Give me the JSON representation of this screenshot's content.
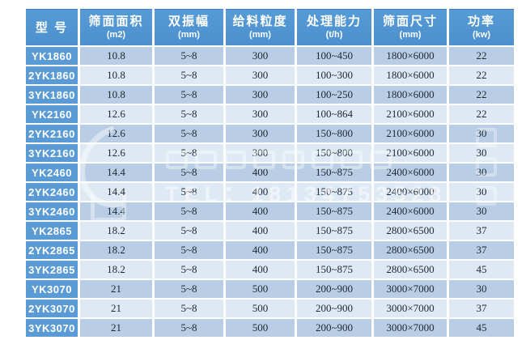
{
  "table": {
    "columns": [
      {
        "title": "型 号",
        "unit": ""
      },
      {
        "title": "筛面面积",
        "unit": "(m2)"
      },
      {
        "title": "双振幅",
        "unit": "(mm)"
      },
      {
        "title": "给料粒度",
        "unit": "(mm)"
      },
      {
        "title": "处理能力",
        "unit": "(t/h)"
      },
      {
        "title": "筛面尺寸",
        "unit": "(mm)"
      },
      {
        "title": "功率",
        "unit": "(kw)"
      }
    ],
    "rows": [
      [
        "YK1860",
        "10.8",
        "5~8",
        "300",
        "100~450",
        "1800×6000",
        "22"
      ],
      [
        "2YK1860",
        "10.8",
        "5~8",
        "300",
        "100~300",
        "1800×6000",
        "22"
      ],
      [
        "3YK1860",
        "10.8",
        "5~8",
        "300",
        "100~250",
        "1800×6000",
        "22"
      ],
      [
        "YK2160",
        "12.6",
        "5~8",
        "300",
        "100~864",
        "2100×6000",
        "22"
      ],
      [
        "2YK2160",
        "12.6",
        "5~8",
        "300",
        "150~800",
        "2100×6000",
        "30"
      ],
      [
        "3YK2160",
        "12.6",
        "5~8",
        "300",
        "150~800",
        "2100×6000",
        "30"
      ],
      [
        "YK2460",
        "14.4",
        "5~8",
        "400",
        "150~875",
        "2400×6000",
        "30"
      ],
      [
        "2YK2460",
        "14.4",
        "5~8",
        "400",
        "150~875",
        "2400×6000",
        "30"
      ],
      [
        "3YK2460",
        "14.4",
        "5~8",
        "400",
        "150~875",
        "2400×6000",
        "30"
      ],
      [
        "YK2865",
        "18.2",
        "5~8",
        "400",
        "150~875",
        "2800×6500",
        "37"
      ],
      [
        "2YK2865",
        "18.2",
        "5~8",
        "400",
        "150~875",
        "2800×6500",
        "37"
      ],
      [
        "3YK2865",
        "18.2",
        "5~8",
        "400",
        "150~875",
        "2800×6500",
        "45"
      ],
      [
        "YK3070",
        "21",
        "5~8",
        "500",
        "200~900",
        "3000×7000",
        "30"
      ],
      [
        "2YK3070",
        "21",
        "5~8",
        "500",
        "200~900",
        "3000×7000",
        "37"
      ],
      [
        "3YK3070",
        "21",
        "5~8",
        "500",
        "200~900",
        "3000×7000",
        "45"
      ]
    ]
  },
  "watermark": {
    "tel": "TEL：18134753528"
  },
  "colors": {
    "header_blue": "#4c90cf",
    "model_cell_blue": "#5b9bd5",
    "row_dark": "#b9cde4",
    "row_light": "#dfe9f4",
    "grid_white": "#ffffff",
    "body_text": "#1d2935",
    "header_text": "#ffffff"
  }
}
